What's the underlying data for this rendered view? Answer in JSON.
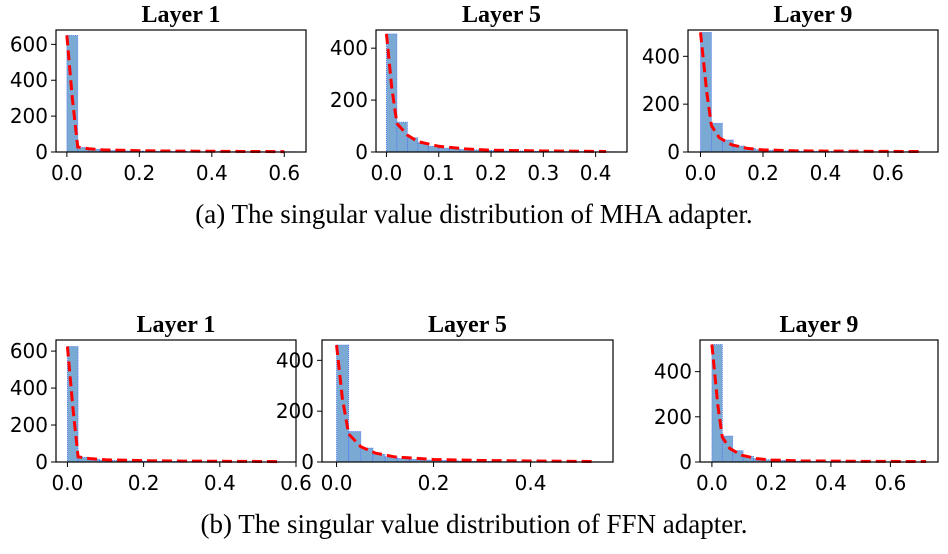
{
  "chart_data": [
    {
      "type": "bar",
      "title": "Layer 1",
      "group": "a",
      "xlim": [
        -0.03,
        0.66
      ],
      "ylim": [
        0,
        680
      ],
      "xticks": [
        "0.0",
        "0.2",
        "0.4",
        "0.6"
      ],
      "xtickvals": [
        0,
        0.2,
        0.4,
        0.6
      ],
      "yticks": [
        "0",
        "200",
        "400",
        "600"
      ],
      "ytickvals": [
        0,
        200,
        400,
        600
      ],
      "bin_width": 0.03,
      "counts": [
        650,
        25,
        15,
        10,
        8,
        6,
        5,
        4,
        4,
        3,
        3,
        2,
        2,
        2,
        2,
        2,
        1,
        1,
        1,
        1,
        1
      ],
      "fit_x": [
        0,
        0.015,
        0.03,
        0.06,
        0.1,
        0.2,
        0.3,
        0.4,
        0.5,
        0.6
      ],
      "fit_y": [
        650,
        300,
        28,
        18,
        12,
        7,
        5,
        4,
        3,
        2
      ]
    },
    {
      "type": "bar",
      "title": "Layer 5",
      "group": "a",
      "xlim": [
        -0.02,
        0.46
      ],
      "ylim": [
        0,
        470
      ],
      "xticks": [
        "0.0",
        "0.1",
        "0.2",
        "0.3",
        "0.4"
      ],
      "xtickvals": [
        0,
        0.1,
        0.2,
        0.3,
        0.4
      ],
      "yticks": [
        "0",
        "200",
        "400"
      ],
      "ytickvals": [
        0,
        200,
        400
      ],
      "bin_width": 0.02,
      "counts": [
        455,
        115,
        55,
        35,
        22,
        15,
        12,
        10,
        8,
        6,
        5,
        4,
        4,
        3,
        3,
        2,
        2,
        2,
        2,
        1,
        1,
        1
      ],
      "fit_x": [
        0,
        0.01,
        0.02,
        0.04,
        0.06,
        0.1,
        0.15,
        0.2,
        0.3,
        0.42
      ],
      "fit_y": [
        455,
        250,
        110,
        65,
        40,
        22,
        12,
        7,
        4,
        2
      ]
    },
    {
      "type": "bar",
      "title": "Layer 9",
      "group": "a",
      "xlim": [
        -0.04,
        0.76
      ],
      "ylim": [
        0,
        510
      ],
      "xticks": [
        "0.0",
        "0.2",
        "0.4",
        "0.6"
      ],
      "xtickvals": [
        0,
        0.2,
        0.4,
        0.6
      ],
      "yticks": [
        "0",
        "200",
        "400"
      ],
      "ytickvals": [
        0,
        200,
        400
      ],
      "bin_width": 0.035,
      "counts": [
        500,
        120,
        50,
        25,
        15,
        10,
        7,
        5,
        4,
        3,
        3,
        2,
        2,
        2,
        1,
        1,
        1,
        1,
        1,
        1
      ],
      "fit_x": [
        0,
        0.02,
        0.035,
        0.06,
        0.1,
        0.15,
        0.2,
        0.3,
        0.5,
        0.7
      ],
      "fit_y": [
        500,
        250,
        110,
        60,
        30,
        15,
        9,
        5,
        3,
        2
      ]
    },
    {
      "type": "bar",
      "title": "Layer 1",
      "group": "b",
      "xlim": [
        -0.03,
        0.6
      ],
      "ylim": [
        0,
        660
      ],
      "xticks": [
        "0.0",
        "0.2",
        "0.4",
        "0.6"
      ],
      "xtickvals": [
        0,
        0.2,
        0.4,
        0.6
      ],
      "yticks": [
        "0",
        "200",
        "400",
        "600"
      ],
      "ytickvals": [
        0,
        200,
        400,
        600
      ],
      "bin_width": 0.028,
      "counts": [
        625,
        25,
        15,
        10,
        8,
        6,
        5,
        4,
        4,
        3,
        3,
        2,
        2,
        2,
        2,
        1,
        1,
        1,
        1,
        1
      ],
      "fit_x": [
        0,
        0.014,
        0.028,
        0.06,
        0.1,
        0.2,
        0.3,
        0.4,
        0.5,
        0.56
      ],
      "fit_y": [
        625,
        300,
        28,
        18,
        12,
        7,
        5,
        4,
        3,
        2
      ]
    },
    {
      "type": "bar",
      "title": "Layer 5",
      "group": "b",
      "xlim": [
        -0.03,
        0.57
      ],
      "ylim": [
        0,
        480
      ],
      "xticks": [
        "0.0",
        "0.2",
        "0.4"
      ],
      "xtickvals": [
        0,
        0.2,
        0.4
      ],
      "yticks": [
        "0",
        "200",
        "400"
      ],
      "ytickvals": [
        0,
        200,
        400
      ],
      "bin_width": 0.025,
      "counts": [
        460,
        120,
        55,
        30,
        20,
        14,
        10,
        8,
        6,
        5,
        4,
        3,
        3,
        2,
        2,
        2,
        1,
        1,
        1,
        1,
        1,
        1
      ],
      "fit_x": [
        0,
        0.012,
        0.025,
        0.05,
        0.08,
        0.12,
        0.2,
        0.3,
        0.4,
        0.53
      ],
      "fit_y": [
        460,
        250,
        110,
        60,
        35,
        20,
        10,
        6,
        4,
        2
      ]
    },
    {
      "type": "bar",
      "title": "Layer 9",
      "group": "b",
      "xlim": [
        -0.04,
        0.76
      ],
      "ylim": [
        0,
        540
      ],
      "xticks": [
        "0.0",
        "0.2",
        "0.4",
        "0.6"
      ],
      "xtickvals": [
        0,
        0.2,
        0.4,
        0.6
      ],
      "yticks": [
        "0",
        "200",
        "400"
      ],
      "ytickvals": [
        0,
        200,
        400
      ],
      "bin_width": 0.035,
      "counts": [
        520,
        115,
        50,
        25,
        15,
        10,
        7,
        5,
        4,
        3,
        3,
        2,
        2,
        2,
        1,
        1,
        1,
        1,
        1,
        1
      ],
      "fit_x": [
        0,
        0.02,
        0.035,
        0.06,
        0.1,
        0.15,
        0.2,
        0.3,
        0.5,
        0.72
      ],
      "fit_y": [
        520,
        250,
        110,
        60,
        30,
        15,
        9,
        5,
        3,
        2
      ]
    }
  ],
  "captions": {
    "a": "(a) The singular value distribution of MHA adapter.",
    "b": "(b) The singular value distribution of FFN adapter."
  },
  "colors": {
    "bar": "#7aaad4",
    "bar_edge": "#4a6cf0",
    "fit": "#ff0000"
  }
}
